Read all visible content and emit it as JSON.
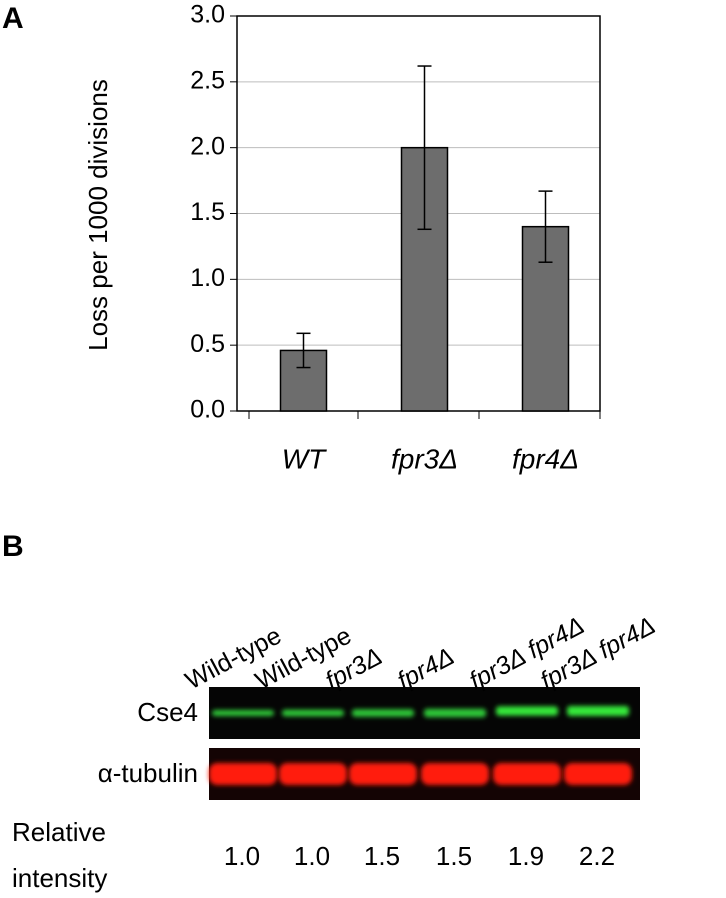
{
  "panel_a": {
    "label": "A"
  },
  "chart_data": {
    "type": "bar",
    "ylabel": "Loss per 1000 divisions",
    "categories": [
      "WT",
      "fpr3Δ",
      "fpr4Δ"
    ],
    "values": [
      0.46,
      2.0,
      1.4
    ],
    "errors": [
      0.13,
      0.62,
      0.27
    ],
    "color": "#6d6d6d",
    "ylim": [
      0,
      3
    ],
    "yticks": [
      {
        "value": 0,
        "label": "0.0"
      },
      0.5,
      {
        "value": 1,
        "label": "1.0"
      },
      1.5,
      {
        "value": 2,
        "label": "2.0"
      },
      2.5,
      {
        "value": 3,
        "label": "3.0"
      }
    ],
    "grid": true
  },
  "panel_b": {
    "label": "B",
    "lanes": [
      "Wild-type",
      "Wild-type",
      "fpr3Δ",
      "fpr4Δ",
      "fpr3Δ fpr4Δ",
      "fpr3Δ fpr4Δ"
    ],
    "rows": [
      "Cse4",
      "α-tubulin"
    ],
    "relative_intensity_label": [
      "Relative",
      "intensity"
    ],
    "relative_intensity": [
      "1.0",
      "1.0",
      "1.5",
      "1.5",
      "1.9",
      "2.2"
    ]
  }
}
